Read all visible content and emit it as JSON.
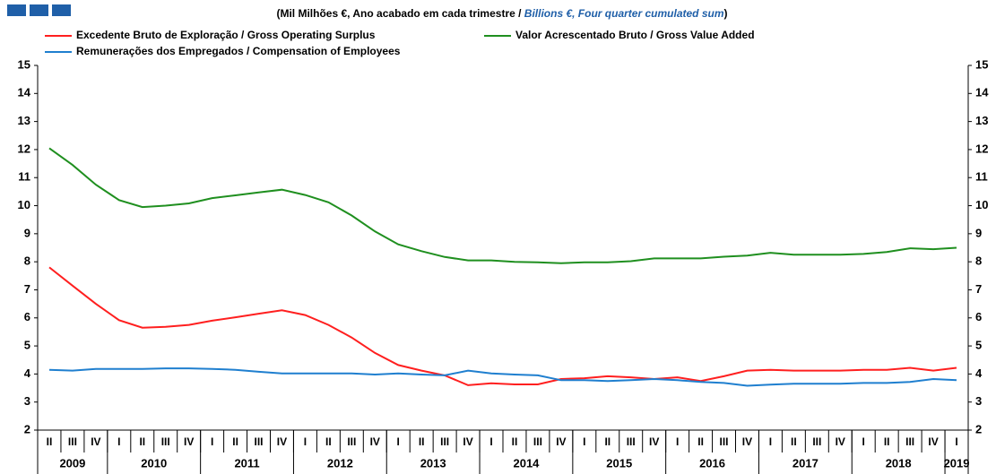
{
  "chart_data": {
    "type": "line",
    "subtitle": [
      "(Mil Milhões €, Ano acabado em cada trimestre / ",
      "Billions €, Four quarter cumulated sum",
      ")"
    ],
    "categories": [
      "II",
      "III",
      "IV",
      "I",
      "II",
      "III",
      "IV",
      "I",
      "II",
      "III",
      "IV",
      "I",
      "II",
      "III",
      "IV",
      "I",
      "II",
      "III",
      "IV",
      "I",
      "II",
      "III",
      "IV",
      "I",
      "II",
      "III",
      "IV",
      "I",
      "II",
      "III",
      "IV",
      "I",
      "II",
      "III",
      "IV",
      "I",
      "II",
      "III",
      "IV",
      "I"
    ],
    "years": [
      "2009",
      "2010",
      "2011",
      "2012",
      "2013",
      "2014",
      "2015",
      "2016",
      "2017",
      "2018",
      "2019"
    ],
    "series": [
      {
        "name": "Excedente Bruto de Exploração / Gross Operating Surplus",
        "color": "#ff1f1f",
        "values": [
          7.8,
          7.15,
          6.5,
          5.92,
          5.65,
          5.68,
          5.75,
          5.9,
          6.02,
          6.15,
          6.27,
          6.1,
          5.75,
          5.3,
          4.75,
          4.32,
          4.12,
          3.95,
          3.6,
          3.67,
          3.63,
          3.63,
          3.82,
          3.85,
          3.92,
          3.88,
          3.82,
          3.88,
          3.75,
          3.92,
          4.12,
          4.15,
          4.12,
          4.12,
          4.12,
          4.15,
          4.15,
          4.22,
          4.12,
          4.22
        ]
      },
      {
        "name": "Valor Acrescentado Bruto / Gross Value Added",
        "color": "#1f8f1f",
        "values": [
          12.05,
          11.45,
          10.75,
          10.2,
          9.95,
          10.0,
          10.08,
          10.27,
          10.37,
          10.47,
          10.57,
          10.38,
          10.12,
          9.65,
          9.08,
          8.62,
          8.38,
          8.17,
          8.05,
          8.05,
          8.0,
          7.98,
          7.95,
          7.98,
          7.98,
          8.02,
          8.12,
          8.12,
          8.12,
          8.18,
          8.22,
          8.32,
          8.25,
          8.25,
          8.25,
          8.28,
          8.35,
          8.48,
          8.45,
          8.5
        ]
      },
      {
        "name": "Remunerações dos Empregados / Compensation of Employees",
        "color": "#1f7fcf",
        "values": [
          4.15,
          4.12,
          4.18,
          4.18,
          4.18,
          4.2,
          4.2,
          4.18,
          4.15,
          4.08,
          4.02,
          4.02,
          4.02,
          4.02,
          3.98,
          4.02,
          3.98,
          3.95,
          4.12,
          4.02,
          3.98,
          3.95,
          3.78,
          3.78,
          3.75,
          3.78,
          3.82,
          3.78,
          3.72,
          3.68,
          3.58,
          3.62,
          3.65,
          3.65,
          3.65,
          3.68,
          3.68,
          3.72,
          3.82,
          3.78
        ]
      }
    ],
    "ylim": [
      2,
      15
    ],
    "yticks": [
      2,
      3,
      4,
      5,
      6,
      7,
      8,
      9,
      10,
      11,
      12,
      13,
      14,
      15
    ]
  }
}
